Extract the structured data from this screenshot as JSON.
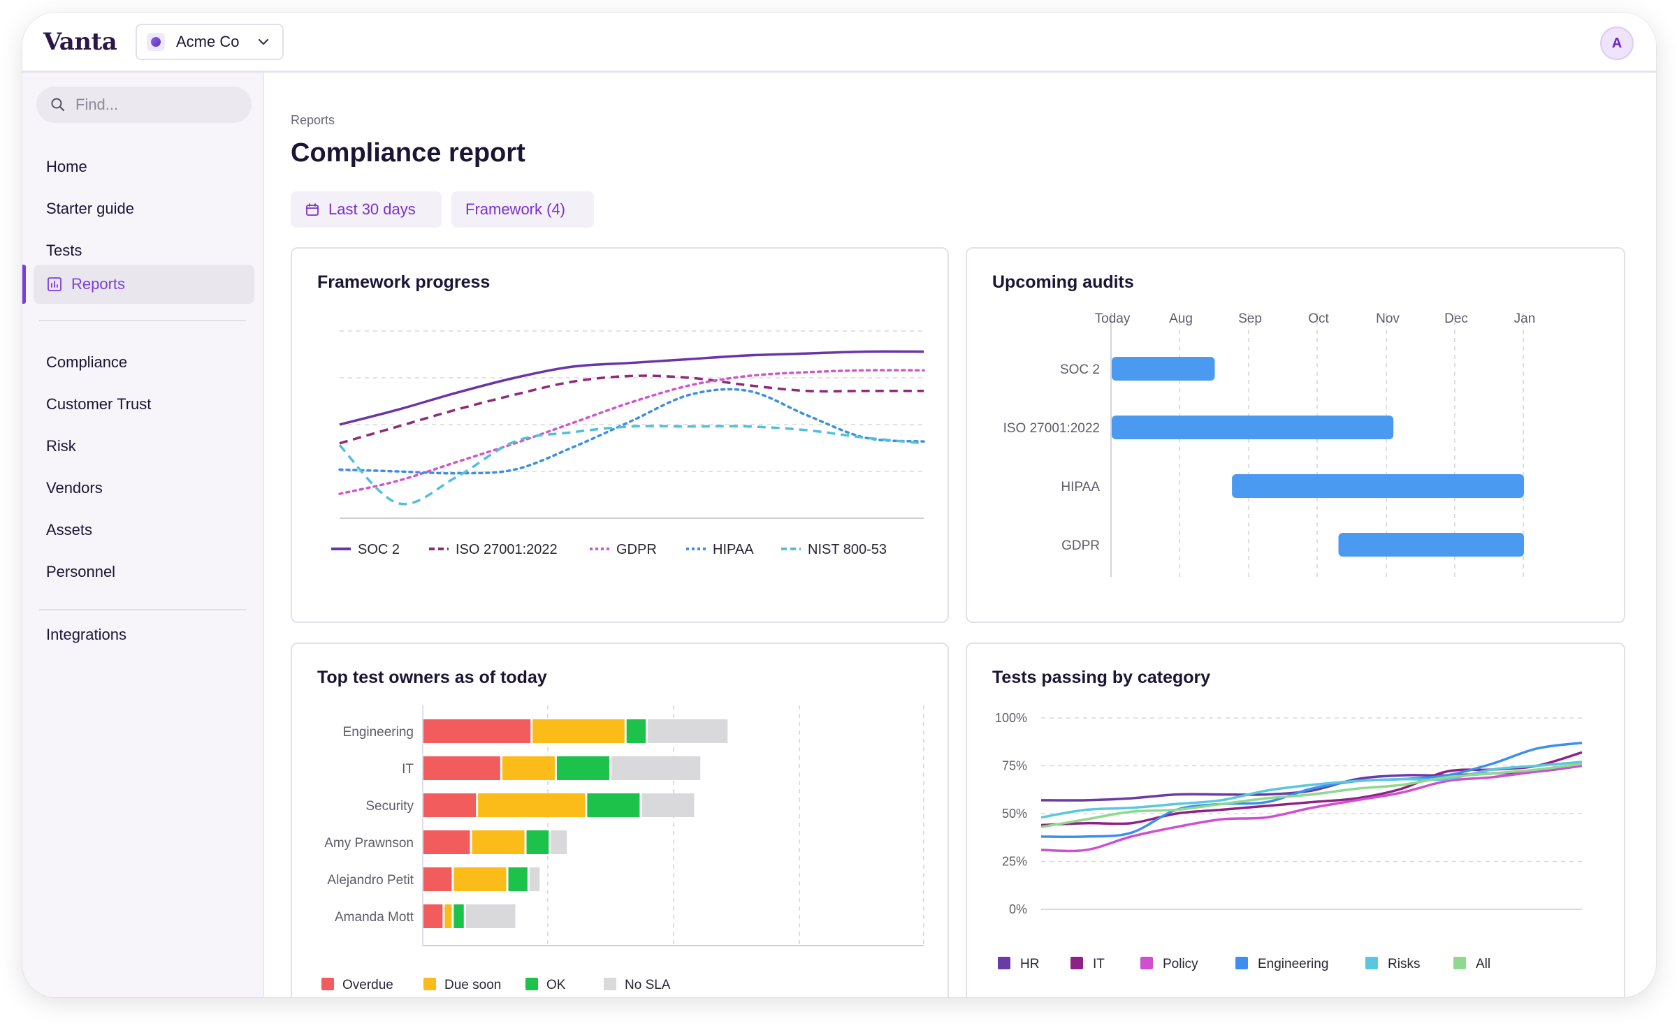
{
  "app": {
    "logo": "Vanta",
    "org_name": "Acme Co",
    "avatar_initial": "A"
  },
  "sidebar": {
    "search_placeholder": "Find...",
    "items": [
      {
        "label": "Home"
      },
      {
        "label": "Starter guide"
      },
      {
        "label": "Tests"
      },
      {
        "label": "Reports",
        "active": true
      },
      {
        "label": "Compliance"
      },
      {
        "label": "Customer Trust"
      },
      {
        "label": "Risk"
      },
      {
        "label": "Vendors"
      },
      {
        "label": "Assets"
      },
      {
        "label": "Personnel"
      },
      {
        "label": "Integrations"
      }
    ]
  },
  "header": {
    "breadcrumb": "Reports",
    "title": "Compliance report"
  },
  "filters": {
    "date_range": "Last 30 days",
    "framework": "Framework (4)"
  },
  "colors": {
    "accent": "#7a3ee0",
    "overdue": "#f25c5c",
    "due_soon": "#fbbc1a",
    "ok": "#1cc24a",
    "no_sla": "#d9d9dc",
    "bar_blue": "#4a9af2",
    "soc2": "#6a35a8",
    "iso": "#8e2a78",
    "gdpr": "#cf57c9",
    "hipaa": "#3d8fe0",
    "nist": "#52bfd8",
    "hr": "#6a3aa6",
    "it": "#8f2185",
    "policy": "#cf4fd0",
    "engineering": "#3d8ef0",
    "risks": "#58c7df",
    "all": "#8ed98e"
  },
  "chart_data": [
    {
      "type": "line",
      "title": "Framework progress",
      "x": [
        0,
        1,
        2,
        3,
        4,
        5,
        6,
        7,
        8,
        9,
        10
      ],
      "ylim": [
        0,
        100
      ],
      "grid": true,
      "legend": "bottom",
      "series": [
        {
          "name": "SOC 2",
          "style": "solid",
          "values": [
            50,
            58,
            67,
            75,
            81,
            83,
            85,
            87,
            88,
            89,
            89
          ]
        },
        {
          "name": "ISO 27001:2022",
          "style": "dashed",
          "values": [
            40,
            49,
            58,
            66,
            73,
            76,
            75,
            71,
            68,
            68,
            68
          ]
        },
        {
          "name": "GDPR",
          "style": "dotted",
          "values": [
            13,
            20,
            30,
            40,
            51,
            62,
            71,
            76,
            78,
            79,
            79
          ]
        },
        {
          "name": "HIPAA",
          "style": "dotted",
          "values": [
            26,
            25,
            24,
            26,
            38,
            52,
            66,
            68,
            55,
            43,
            41
          ]
        },
        {
          "name": "NIST 800-53",
          "style": "dashed",
          "values": [
            39,
            8,
            22,
            41,
            46,
            49,
            49,
            49,
            47,
            43,
            40
          ]
        }
      ]
    },
    {
      "type": "gantt",
      "title": "Upcoming audits",
      "x_ticks": [
        "Today",
        "Aug",
        "Sep",
        "Oct",
        "Nov",
        "Dec",
        "Jan"
      ],
      "categories": [
        "SOC 2",
        "ISO 27001:2022",
        "HIPAA",
        "GDPR"
      ],
      "ranges": [
        [
          0,
          1.5
        ],
        [
          0,
          4.1
        ],
        [
          1.75,
          6
        ],
        [
          3.3,
          6
        ]
      ]
    },
    {
      "type": "bar",
      "stacked": true,
      "orientation": "horizontal",
      "title": "Top test owners as of today",
      "categories": [
        "Engineering",
        "IT",
        "Security",
        "Amy Prawnson",
        "Alejandro Petit",
        "Amanda Mott"
      ],
      "series": [
        {
          "name": "Overdue",
          "values": [
            36,
            26,
            18,
            16,
            10,
            7
          ]
        },
        {
          "name": "Due soon",
          "values": [
            31,
            18,
            36,
            18,
            18,
            3
          ]
        },
        {
          "name": "OK",
          "values": [
            7,
            18,
            18,
            8,
            7,
            4
          ]
        },
        {
          "name": "No SLA",
          "values": [
            27,
            30,
            18,
            6,
            4,
            17
          ]
        }
      ],
      "xlim": [
        0,
        165
      ],
      "legend": "bottom"
    },
    {
      "type": "line",
      "title": "Tests passing by category",
      "y_ticks": [
        "100%",
        "75%",
        "50%",
        "25%",
        "0%"
      ],
      "ylim": [
        0,
        100
      ],
      "x": [
        0,
        1,
        2,
        3,
        4,
        5,
        6,
        7,
        8,
        9,
        10,
        11,
        12
      ],
      "legend": "bottom",
      "series": [
        {
          "name": "HR",
          "values": [
            57,
            57,
            58,
            60,
            60,
            60,
            62,
            68,
            70,
            70,
            71,
            72,
            75
          ]
        },
        {
          "name": "IT",
          "values": [
            44,
            45,
            45,
            50,
            52,
            54,
            56,
            58,
            63,
            72,
            73,
            75,
            82
          ]
        },
        {
          "name": "Policy",
          "values": [
            31,
            31,
            38,
            43,
            47,
            48,
            53,
            57,
            61,
            67,
            69,
            72,
            75
          ]
        },
        {
          "name": "Engineering",
          "values": [
            38,
            38,
            40,
            52,
            55,
            56,
            63,
            67,
            68,
            70,
            76,
            84,
            87
          ]
        },
        {
          "name": "Risks",
          "values": [
            48,
            52,
            53,
            55,
            57,
            62,
            65,
            67,
            68,
            68,
            73,
            75,
            77
          ]
        },
        {
          "name": "All",
          "values": [
            43,
            47,
            51,
            52,
            55,
            58,
            60,
            63,
            65,
            69,
            71,
            73,
            76
          ]
        }
      ]
    }
  ]
}
